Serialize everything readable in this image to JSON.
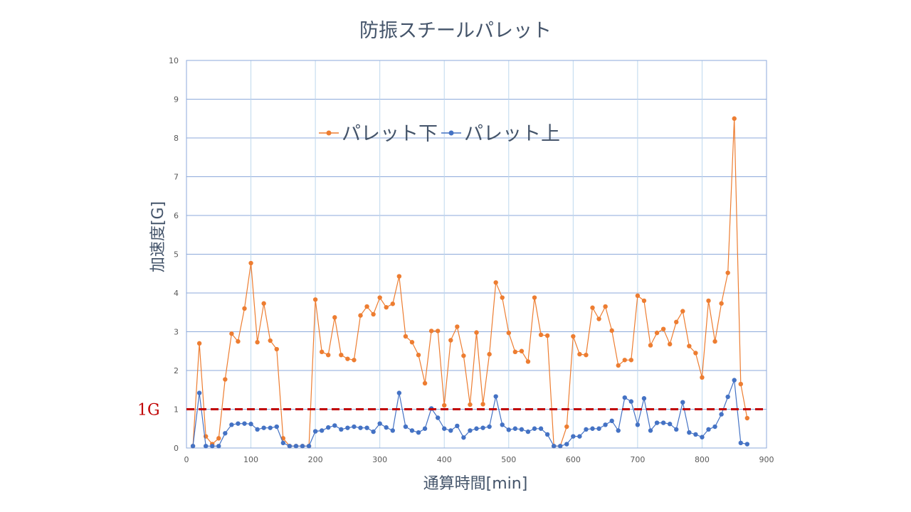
{
  "chart_data": {
    "type": "line",
    "title": "防振スチールパレット",
    "xlabel": "通算時間[min]",
    "ylabel": "加速度[G]",
    "xlim": [
      0,
      900
    ],
    "ylim": [
      0,
      10
    ],
    "x_ticks": [
      0,
      100,
      200,
      300,
      400,
      500,
      600,
      700,
      800,
      900
    ],
    "y_ticks": [
      0,
      1,
      2,
      3,
      4,
      5,
      6,
      7,
      8,
      9,
      10
    ],
    "grid": true,
    "legend_position": "top-center",
    "reference_line": {
      "y": 1,
      "label": "1G",
      "color": "#c00000",
      "style": "dashed"
    },
    "x": [
      10,
      20,
      30,
      40,
      50,
      60,
      70,
      80,
      90,
      100,
      110,
      120,
      130,
      140,
      150,
      160,
      170,
      180,
      190,
      200,
      210,
      220,
      230,
      240,
      250,
      260,
      270,
      280,
      290,
      300,
      310,
      320,
      330,
      340,
      350,
      360,
      370,
      380,
      390,
      400,
      410,
      420,
      430,
      440,
      450,
      460,
      470,
      480,
      490,
      500,
      510,
      520,
      530,
      540,
      550,
      560,
      570,
      580,
      590,
      600,
      610,
      620,
      630,
      640,
      650,
      660,
      670,
      680,
      690,
      700,
      710,
      720,
      730,
      740,
      750,
      760,
      770,
      780,
      790,
      800,
      810,
      820,
      830,
      840,
      850,
      860,
      870
    ],
    "series": [
      {
        "name": "パレット下",
        "color": "#ed7d31",
        "values": [
          0.05,
          2.7,
          0.3,
          0.1,
          0.25,
          1.77,
          2.95,
          2.75,
          3.6,
          4.77,
          2.73,
          3.73,
          2.77,
          2.55,
          0.25,
          0.05,
          0.05,
          0.05,
          0.05,
          3.83,
          2.48,
          2.4,
          3.37,
          2.4,
          2.3,
          2.27,
          3.42,
          3.65,
          3.45,
          3.88,
          3.63,
          3.72,
          4.43,
          2.88,
          2.73,
          2.4,
          1.67,
          3.02,
          3.02,
          1.1,
          2.78,
          3.13,
          2.38,
          1.12,
          2.98,
          1.13,
          2.42,
          4.27,
          3.88,
          2.97,
          2.48,
          2.5,
          2.23,
          3.88,
          2.92,
          2.9,
          0.05,
          0.05,
          0.55,
          2.88,
          2.42,
          2.4,
          3.62,
          3.33,
          3.65,
          3.03,
          2.13,
          2.27,
          2.27,
          3.93,
          3.8,
          2.65,
          2.97,
          3.07,
          2.68,
          3.25,
          3.53,
          2.63,
          2.45,
          1.82,
          3.8,
          2.75,
          3.73,
          4.52,
          8.5,
          1.65,
          0.77
        ]
      },
      {
        "name": "パレット上",
        "color": "#4472c4",
        "values": [
          0.05,
          1.42,
          0.05,
          0.05,
          0.05,
          0.38,
          0.6,
          0.63,
          0.63,
          0.62,
          0.48,
          0.52,
          0.52,
          0.55,
          0.13,
          0.05,
          0.05,
          0.05,
          0.05,
          0.43,
          0.45,
          0.53,
          0.58,
          0.48,
          0.52,
          0.55,
          0.52,
          0.52,
          0.42,
          0.63,
          0.53,
          0.45,
          1.42,
          0.55,
          0.45,
          0.4,
          0.5,
          1.02,
          0.78,
          0.5,
          0.45,
          0.57,
          0.27,
          0.45,
          0.5,
          0.52,
          0.55,
          1.33,
          0.6,
          0.47,
          0.5,
          0.48,
          0.42,
          0.5,
          0.5,
          0.35,
          0.05,
          0.05,
          0.1,
          0.3,
          0.3,
          0.48,
          0.5,
          0.5,
          0.6,
          0.7,
          0.45,
          1.3,
          1.2,
          0.6,
          1.28,
          0.45,
          0.65,
          0.65,
          0.62,
          0.48,
          1.18,
          0.4,
          0.35,
          0.28,
          0.48,
          0.55,
          0.87,
          1.32,
          1.75,
          0.13,
          0.1
        ]
      }
    ]
  }
}
